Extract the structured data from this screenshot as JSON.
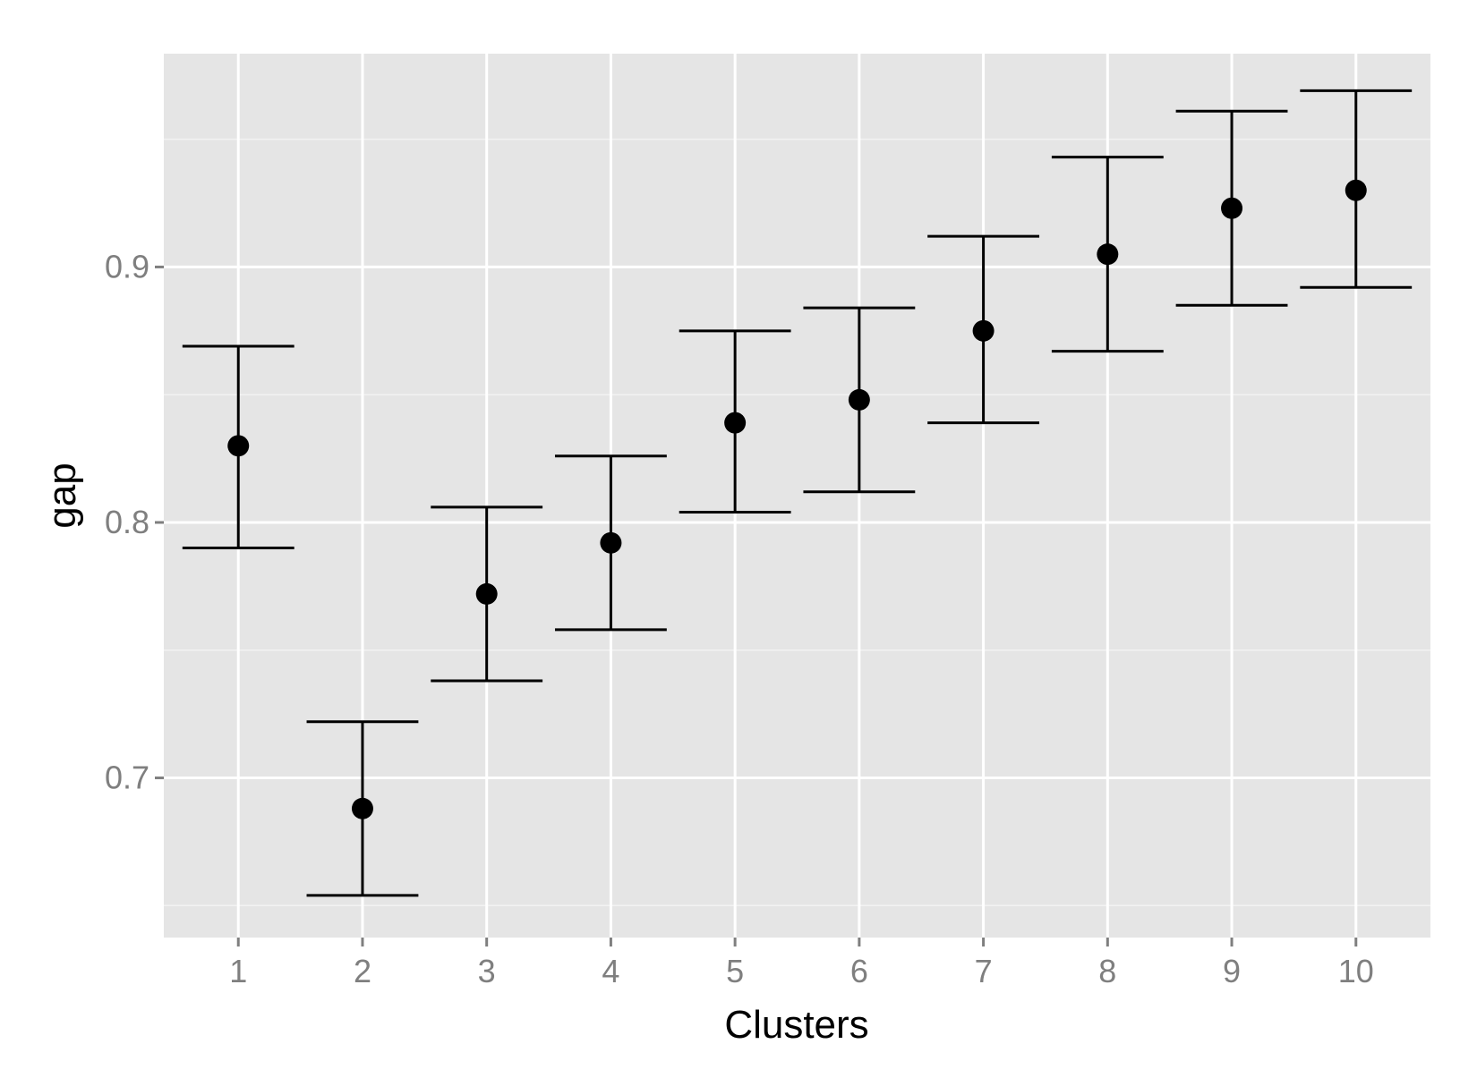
{
  "chart_data": {
    "type": "scatter",
    "error_bars": true,
    "xlabel": "Clusters",
    "ylabel": "gap",
    "x": [
      1,
      2,
      3,
      4,
      5,
      6,
      7,
      8,
      9,
      10
    ],
    "x_tick_labels": [
      "1",
      "2",
      "3",
      "4",
      "5",
      "6",
      "7",
      "8",
      "9",
      "10"
    ],
    "y": [
      0.83,
      0.688,
      0.772,
      0.792,
      0.839,
      0.848,
      0.875,
      0.905,
      0.923,
      0.93
    ],
    "lower": [
      0.79,
      0.654,
      0.738,
      0.758,
      0.804,
      0.812,
      0.839,
      0.867,
      0.885,
      0.892
    ],
    "upper": [
      0.869,
      0.722,
      0.806,
      0.826,
      0.875,
      0.884,
      0.912,
      0.943,
      0.961,
      0.969
    ],
    "y_ticks": [
      0.7,
      0.8,
      0.9
    ],
    "y_tick_labels": [
      "0.7",
      "0.8",
      "0.9"
    ],
    "xlim": [
      0.4,
      10.6
    ],
    "ylim": [
      0.6375,
      0.9835
    ],
    "grid": true,
    "colors": {
      "panel_background": "#e5e5e5",
      "grid_major": "#ffffff",
      "grid_minor": "#f2f2f2",
      "marks": "#000000",
      "tick_text": "#7f7f7f",
      "tick_marks": "#7f7f7f",
      "axis_title": "#000000"
    }
  }
}
